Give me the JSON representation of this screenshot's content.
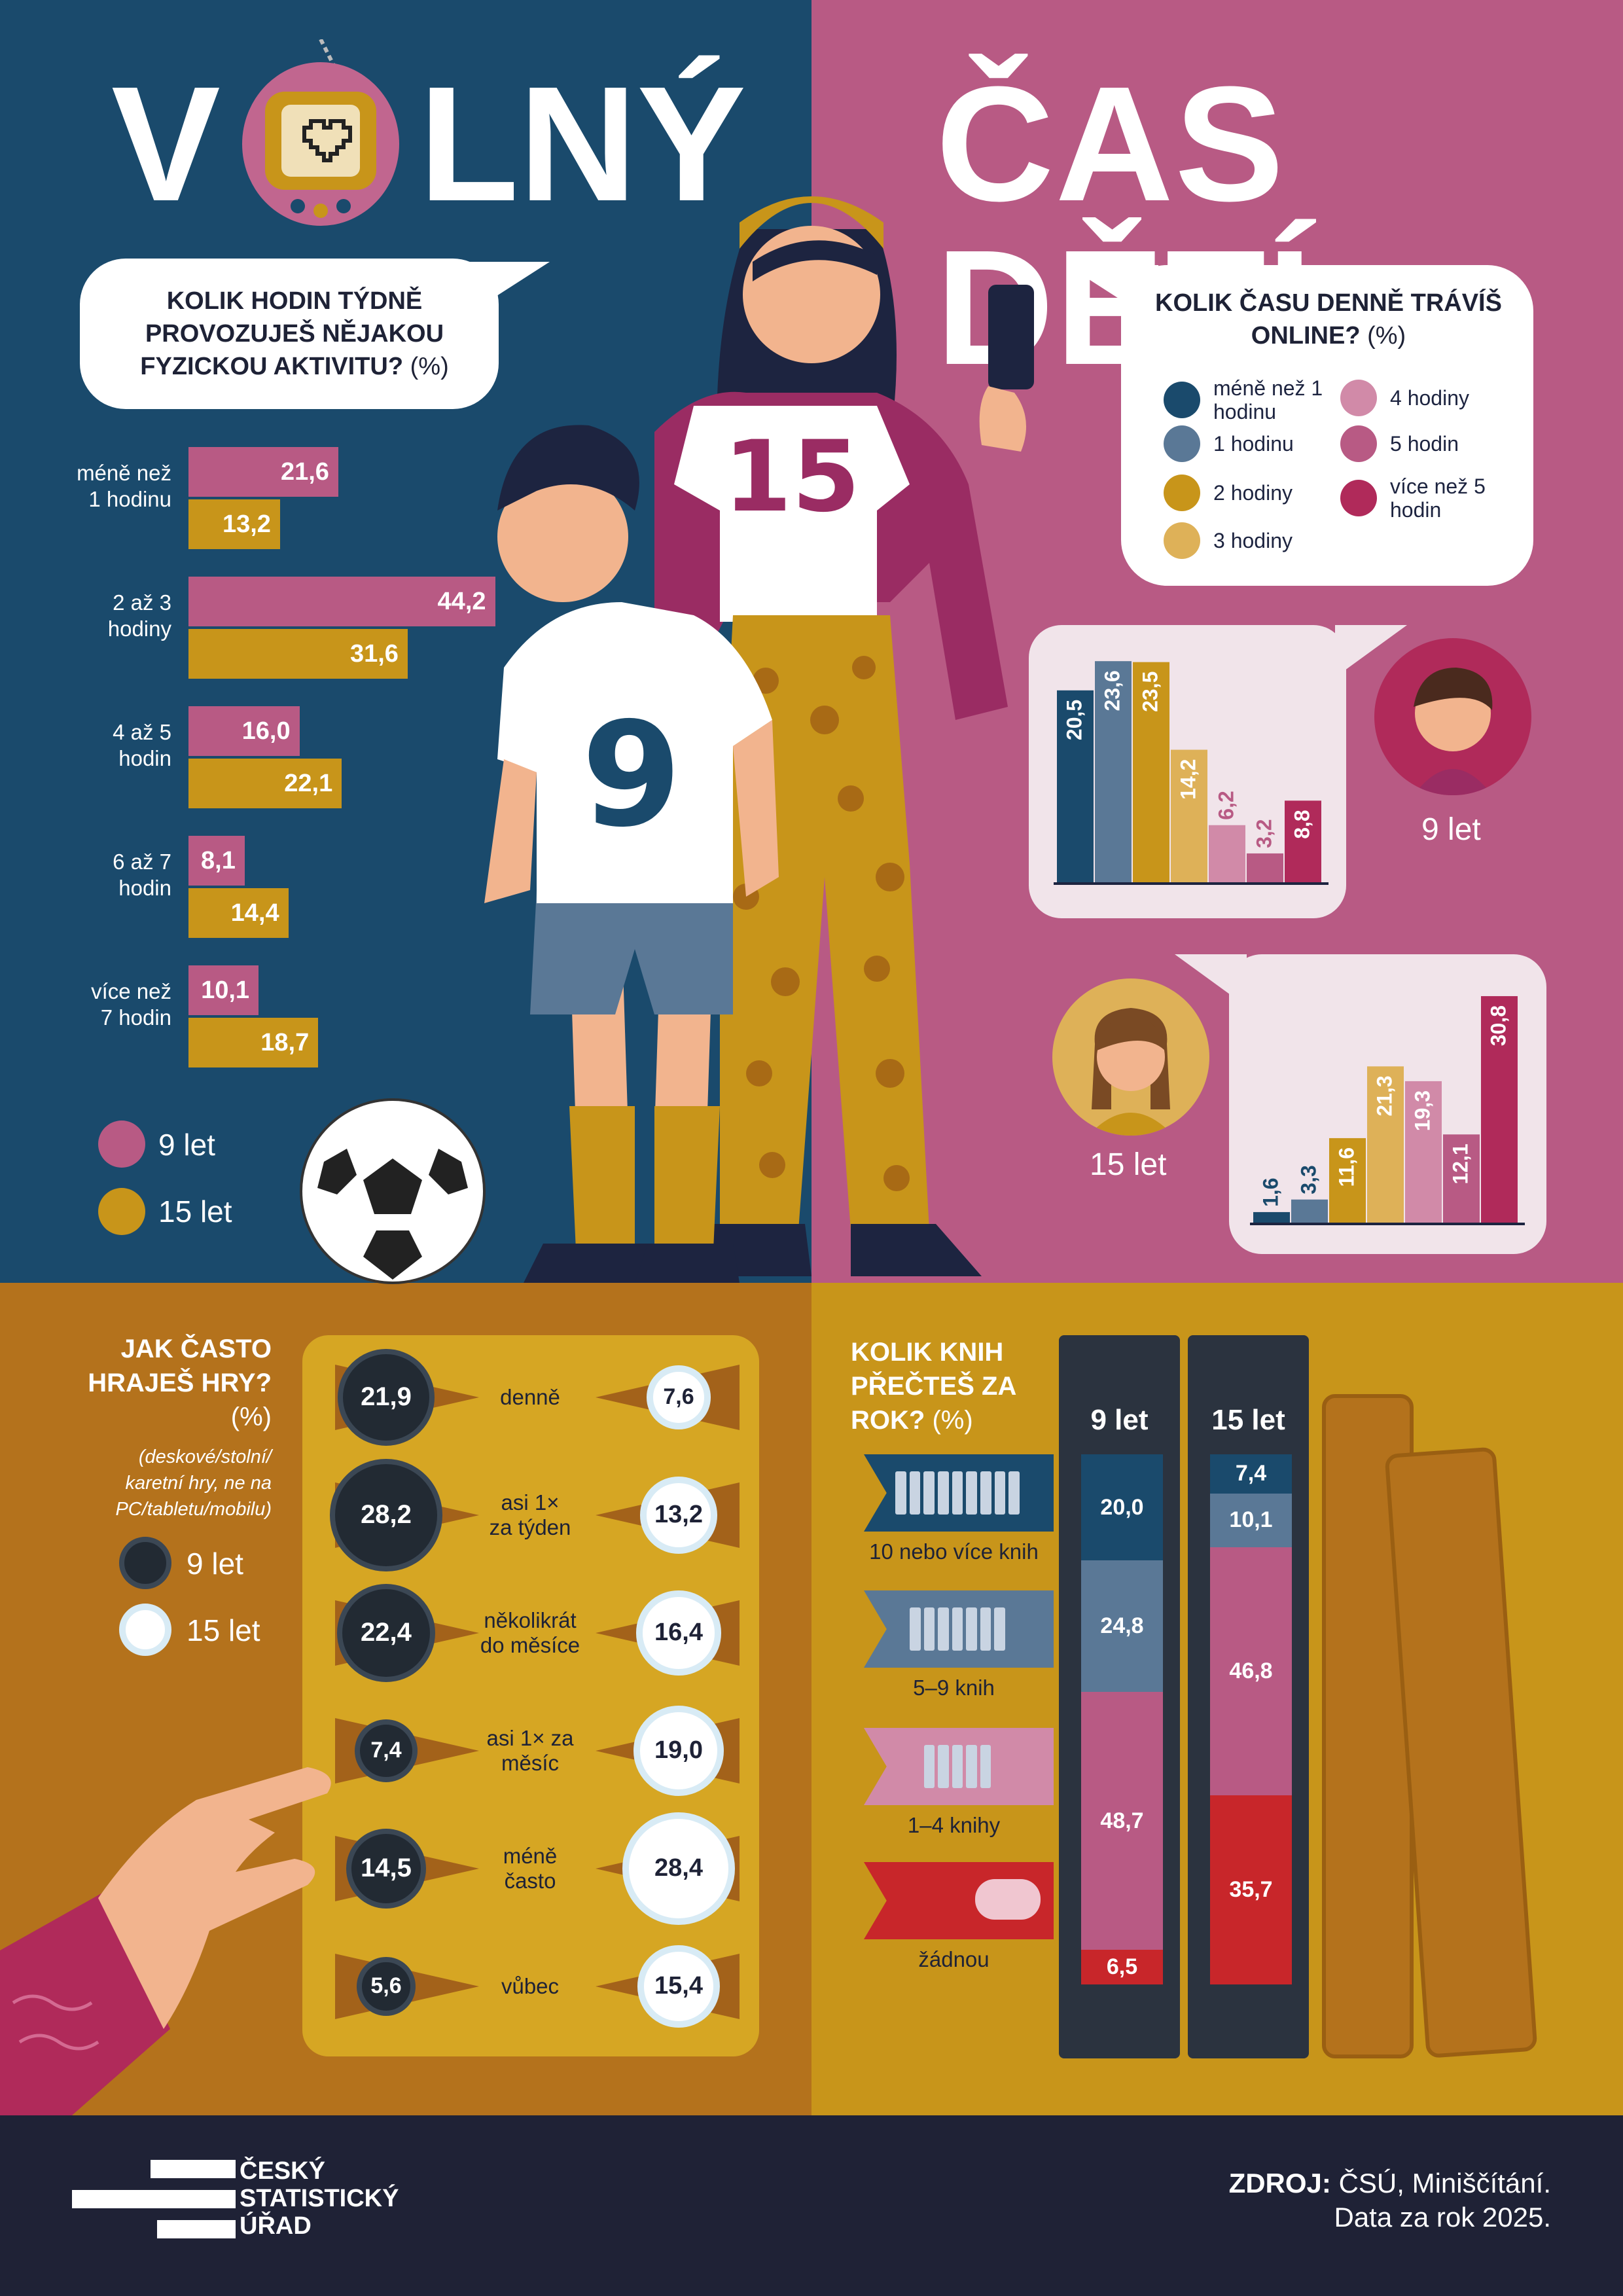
{
  "title": {
    "left": "V",
    "left_rest": "LNÝ",
    "right": "ČAS DĚTÍ"
  },
  "colors": {
    "navy": "#1a4a6c",
    "pink": "#b85a84",
    "mustard": "#c8951a",
    "lightpink": "#d18aa8",
    "lightmustard": "#deb158",
    "grayblue": "#5a7896",
    "crimson": "#b02a5a",
    "red": "#c8262a",
    "dark": "#1f2236"
  },
  "q1": {
    "question": "KOLIK HODIN TÝDNĚ PROVOZUJEŠ NĚJAKOU FYZICKOU AKTIVITU?",
    "unit": "(%)",
    "legend": {
      "age9": "9 let",
      "age15": "15 let"
    }
  },
  "q2": {
    "question": "KOLIK ČASU DENNĚ TRÁVÍŠ ONLINE?",
    "unit": "(%)",
    "legend": [
      "méně než 1 hodinu",
      "1 hodinu",
      "2 hodiny",
      "3 hodiny",
      "4 hodiny",
      "5 hodin",
      "více než 5 hodin"
    ],
    "age9_label": "9 let",
    "age15_label": "15 let"
  },
  "q3": {
    "question": "JAK ČASTO HRAJEŠ HRY?",
    "unit": "(%)",
    "note": "(deskové/stolní/ karetní hry, ne na PC/tabletu/mobilu)",
    "legend": {
      "age9": "9 let",
      "age15": "15 let"
    }
  },
  "q4": {
    "question": "KOLIK KNIH PŘEČTEŠ ZA ROK?",
    "unit": "(%)",
    "col9": "9 let",
    "col15": "15 let"
  },
  "footer": {
    "logo_lines": [
      "ČESKÝ",
      "STATISTICKÝ",
      "ÚŘAD"
    ],
    "source_label": "ZDROJ:",
    "source_text": "ČSÚ, Miniščítání.",
    "source_line2": "Data za rok 2025."
  },
  "decor": {
    "shirt_boy": "9",
    "shirt_girl": "15"
  },
  "chart_data": [
    {
      "type": "bar",
      "title": "KOLIK HODIN TÝDNĚ PROVOZUJEŠ NĚJAKOU FYZICKOU AKTIVITU? (%)",
      "categories": [
        "méně než 1 hodinu",
        "2 až 3 hodiny",
        "4 až 5 hodin",
        "6 až 7 hodin",
        "více než 7 hodin"
      ],
      "cat_lines": [
        [
          "méně než",
          "1 hodinu"
        ],
        [
          "2 až 3",
          "hodiny"
        ],
        [
          "4 až 5",
          "hodin"
        ],
        [
          "6 až 7",
          "hodin"
        ],
        [
          "více než",
          "7 hodin"
        ]
      ],
      "series": [
        {
          "name": "9 let",
          "color": "#b85a84",
          "values": [
            "21,6",
            "44,2",
            "16,0",
            "8,1",
            "10,1"
          ]
        },
        {
          "name": "15 let",
          "color": "#c8951a",
          "values": [
            "13,2",
            "31,6",
            "22,1",
            "14,4",
            "18,7"
          ]
        }
      ]
    },
    {
      "type": "bar",
      "title": "KOLIK ČASU DENNĚ TRÁVÍŠ ONLINE? (%) — 9 let",
      "categories": [
        "méně než 1 hodinu",
        "1 hodinu",
        "2 hodiny",
        "3 hodiny",
        "4 hodiny",
        "5 hodin",
        "více než 5 hodin"
      ],
      "values": [
        "20,5",
        "23,6",
        "23,5",
        "14,2",
        "6,2",
        "3,2",
        "8,8"
      ]
    },
    {
      "type": "bar",
      "title": "KOLIK ČASU DENNĚ TRÁVÍŠ ONLINE? (%) — 15 let",
      "categories": [
        "méně než 1 hodinu",
        "1 hodinu",
        "2 hodiny",
        "3 hodiny",
        "4 hodiny",
        "5 hodin",
        "více než 5 hodin"
      ],
      "values": [
        "1,6",
        "3,3",
        "11,6",
        "21,3",
        "19,3",
        "12,1",
        "30,8"
      ]
    },
    {
      "type": "table",
      "title": "JAK ČASTO HRAJEŠ HRY? (%)",
      "categories": [
        "denně",
        "asi 1× za týden",
        "několikrát do měsíce",
        "asi 1× za měsíc",
        "méně často",
        "vůbec"
      ],
      "cat_lines": [
        [
          "denně"
        ],
        [
          "asi 1×",
          "za týden"
        ],
        [
          "několikrát",
          "do měsíce"
        ],
        [
          "asi 1× za",
          "měsíc"
        ],
        [
          "méně",
          "často"
        ],
        [
          "vůbec"
        ]
      ],
      "series": [
        {
          "name": "9 let",
          "values": [
            "21,9",
            "28,2",
            "22,4",
            "7,4",
            "14,5",
            "5,6"
          ]
        },
        {
          "name": "15 let",
          "values": [
            "7,6",
            "13,2",
            "16,4",
            "19,0",
            "28,4",
            "15,4"
          ]
        }
      ]
    },
    {
      "type": "bar",
      "title": "KOLIK KNIH PŘEČTEŠ ZA ROK? (%)",
      "categories": [
        "10 nebo více knih",
        "5–9 knih",
        "1–4 knihy",
        "žádnou"
      ],
      "series": [
        {
          "name": "9 let",
          "values": [
            "20,0",
            "24,8",
            "48,7",
            "6,5"
          ]
        },
        {
          "name": "15 let",
          "values": [
            "7,4",
            "10,1",
            "46,8",
            "35,7"
          ]
        }
      ]
    }
  ]
}
